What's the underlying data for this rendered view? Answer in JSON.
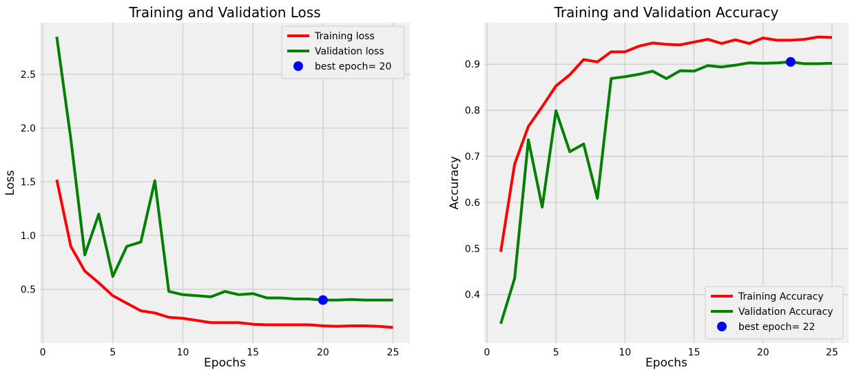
{
  "chart_data": [
    {
      "type": "line",
      "title": "Training and Validation Loss",
      "xlabel": "Epochs",
      "ylabel": "Loss",
      "xlim": [
        -0.2,
        26.2
      ],
      "ylim": [
        0.0,
        2.98
      ],
      "xticks": [
        0,
        5,
        10,
        15,
        20,
        25
      ],
      "yticks": [
        0.5,
        1.0,
        1.5,
        2.0,
        2.5
      ],
      "xtick_labels": [
        "0",
        "5",
        "10",
        "15",
        "20",
        "25"
      ],
      "ytick_labels": [
        "0.5",
        "1.0",
        "1.5",
        "2.0",
        "2.5"
      ],
      "grid": true,
      "legend_position": "upper right",
      "x": [
        1,
        2,
        3,
        4,
        5,
        6,
        7,
        8,
        9,
        10,
        11,
        12,
        13,
        14,
        15,
        16,
        17,
        18,
        19,
        20,
        21,
        22,
        23,
        24,
        25
      ],
      "series": [
        {
          "name": "Training loss",
          "color": "#ff0000",
          "values": [
            1.52,
            0.9,
            0.67,
            0.56,
            0.44,
            0.37,
            0.3,
            0.28,
            0.24,
            0.23,
            0.21,
            0.19,
            0.19,
            0.19,
            0.175,
            0.17,
            0.17,
            0.17,
            0.17,
            0.16,
            0.155,
            0.16,
            0.16,
            0.155,
            0.145
          ]
        },
        {
          "name": "Validation loss",
          "color": "#008000",
          "values": [
            2.85,
            1.9,
            0.82,
            1.2,
            0.62,
            0.9,
            0.94,
            1.51,
            0.48,
            0.45,
            0.44,
            0.43,
            0.48,
            0.45,
            0.46,
            0.42,
            0.42,
            0.41,
            0.41,
            0.4,
            0.4,
            0.405,
            0.4,
            0.4,
            0.4
          ]
        }
      ],
      "best": {
        "label": "best epoch= 20",
        "x": 20,
        "y": 0.4,
        "color": "#0000ff"
      }
    },
    {
      "type": "line",
      "title": "Training and Validation Accuracy",
      "xlabel": "Epochs",
      "ylabel": "Accuracy",
      "xlim": [
        -0.2,
        26.2
      ],
      "ylim": [
        0.295,
        0.99
      ],
      "xticks": [
        0,
        5,
        10,
        15,
        20,
        25
      ],
      "yticks": [
        0.4,
        0.5,
        0.6,
        0.7,
        0.8,
        0.9
      ],
      "xtick_labels": [
        "0",
        "5",
        "10",
        "15",
        "20",
        "25"
      ],
      "ytick_labels": [
        "0.4",
        "0.5",
        "0.6",
        "0.7",
        "0.8",
        "0.9"
      ],
      "grid": true,
      "legend_position": "lower right",
      "x": [
        1,
        2,
        3,
        4,
        5,
        6,
        7,
        8,
        9,
        10,
        11,
        12,
        13,
        14,
        15,
        16,
        17,
        18,
        19,
        20,
        21,
        22,
        23,
        24,
        25
      ],
      "series": [
        {
          "name": "Training Accuracy",
          "color": "#ff0000",
          "values": [
            0.493,
            0.683,
            0.765,
            0.808,
            0.853,
            0.877,
            0.91,
            0.905,
            0.927,
            0.927,
            0.939,
            0.946,
            0.943,
            0.942,
            0.948,
            0.954,
            0.945,
            0.953,
            0.945,
            0.957,
            0.952,
            0.952,
            0.954,
            0.959,
            0.958
          ]
        },
        {
          "name": "Validation Accuracy",
          "color": "#008000",
          "values": [
            0.337,
            0.435,
            0.736,
            0.59,
            0.799,
            0.71,
            0.727,
            0.609,
            0.869,
            0.873,
            0.878,
            0.885,
            0.869,
            0.886,
            0.885,
            0.897,
            0.894,
            0.898,
            0.903,
            0.902,
            0.903,
            0.905,
            0.901,
            0.901,
            0.902
          ]
        }
      ],
      "best": {
        "label": "best epoch= 22",
        "x": 22,
        "y": 0.905,
        "color": "#0000ff"
      }
    }
  ]
}
